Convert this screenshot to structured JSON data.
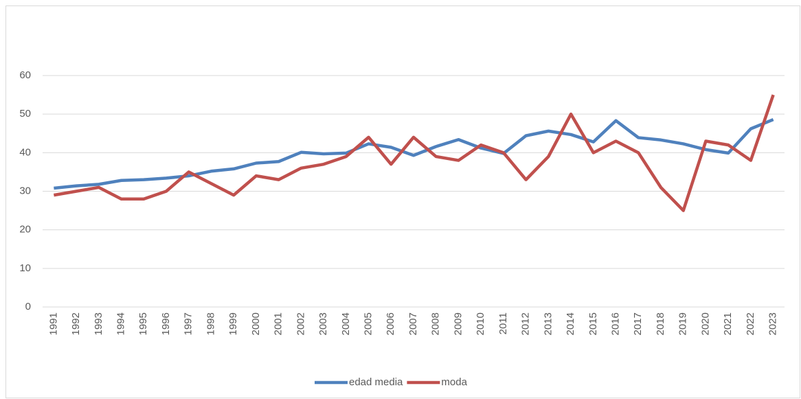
{
  "chart_data": {
    "type": "line",
    "categories": [
      "1991",
      "1992",
      "1993",
      "1994",
      "1995",
      "1996",
      "1997",
      "1998",
      "1999",
      "2000",
      "2001",
      "2002",
      "2003",
      "2004",
      "2005",
      "2006",
      "2007",
      "2008",
      "2009",
      "2010",
      "2011",
      "2012",
      "2013",
      "2014",
      "2015",
      "2016",
      "2017",
      "2018",
      "2019",
      "2020",
      "2021",
      "2022",
      "2023"
    ],
    "series": [
      {
        "name": "edad media",
        "color": "#4f81bd",
        "values": [
          30.8,
          31.4,
          31.8,
          32.8,
          33.0,
          33.4,
          34.0,
          35.2,
          35.8,
          37.3,
          37.7,
          40.1,
          39.7,
          39.9,
          42.3,
          41.4,
          39.3,
          41.6,
          43.4,
          41.2,
          39.8,
          44.4,
          45.6,
          44.7,
          42.8,
          48.3,
          43.9,
          43.3,
          42.3,
          40.8,
          39.9,
          46.2,
          48.6
        ]
      },
      {
        "name": "moda",
        "color": "#c0504d",
        "values": [
          29,
          30,
          31,
          28,
          28,
          30,
          35,
          32,
          29,
          34,
          33,
          36,
          37,
          39,
          44,
          37,
          44,
          39,
          38,
          42,
          40,
          33,
          39,
          50,
          40,
          43,
          40,
          31,
          25,
          43,
          42,
          38,
          55
        ]
      }
    ],
    "ylim": [
      0,
      60
    ],
    "yticks": [
      0,
      10,
      20,
      30,
      40,
      50,
      60
    ],
    "grid": true,
    "legend": "bottom"
  }
}
